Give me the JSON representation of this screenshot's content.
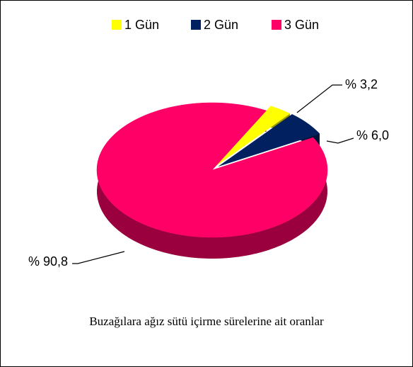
{
  "chart_data": {
    "type": "pie",
    "title": "Buzağılara ağız sütü içirme sürelerine ait oranlar",
    "categories": [
      "1 Gün",
      "2 Gün",
      "3 Gün"
    ],
    "values": [
      3.2,
      6.0,
      90.8
    ],
    "value_labels": [
      "% 3,2",
      "% 6,0",
      "% 90,8"
    ],
    "colors": [
      "#ffff00",
      "#002060",
      "#ff0066"
    ],
    "legend": "top"
  }
}
